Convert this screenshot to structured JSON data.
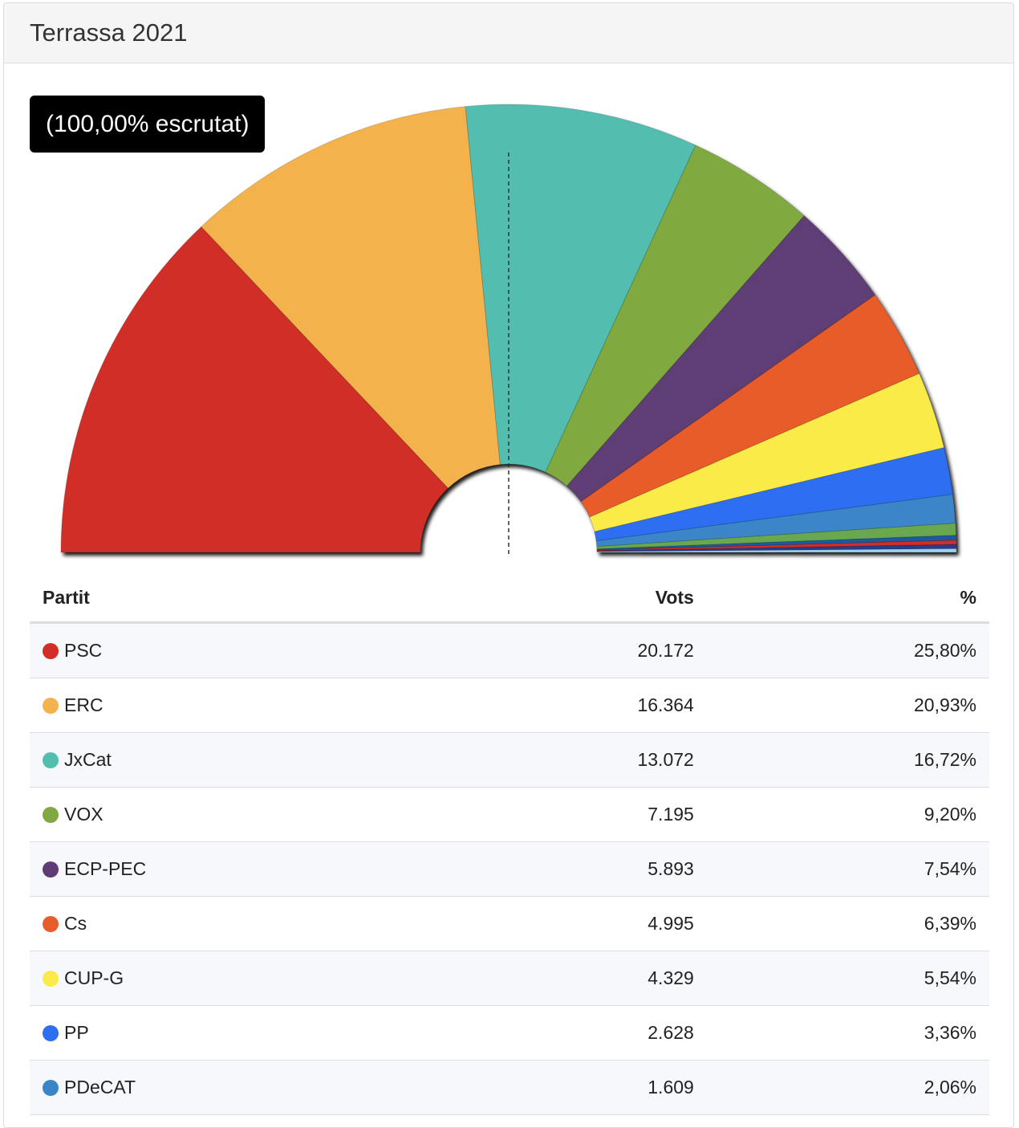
{
  "header": {
    "title": "Terrassa 2021"
  },
  "badge": {
    "text": "(100,00% escrutat)"
  },
  "table": {
    "columns": {
      "party": "Partit",
      "votes": "Vots",
      "pct": "%"
    },
    "rows": [
      {
        "party": "PSC",
        "votes": "20.172",
        "pct": "25,80%",
        "color": "#d02e27"
      },
      {
        "party": "ERC",
        "votes": "16.364",
        "pct": "20,93%",
        "color": "#f4b24e"
      },
      {
        "party": "JxCat",
        "votes": "13.072",
        "pct": "16,72%",
        "color": "#52beb0"
      },
      {
        "party": "VOX",
        "votes": "7.195",
        "pct": "9,20%",
        "color": "#80aa41"
      },
      {
        "party": "ECP-PEC",
        "votes": "5.893",
        "pct": "7,54%",
        "color": "#5e3d74"
      },
      {
        "party": "Cs",
        "votes": "4.995",
        "pct": "6,39%",
        "color": "#e85c2b"
      },
      {
        "party": "CUP-G",
        "votes": "4.329",
        "pct": "5,54%",
        "color": "#faeb4a"
      },
      {
        "party": "PP",
        "votes": "2.628",
        "pct": "3,36%",
        "color": "#2d6ef0"
      },
      {
        "party": "PDeCAT",
        "votes": "1.609",
        "pct": "2,06%",
        "color": "#3a85c8"
      }
    ]
  },
  "chart_data": {
    "type": "pie",
    "style": "half-donut",
    "scrutiny": "(100,00% escrutat)",
    "categories": [
      "PSC",
      "ERC",
      "JxCat",
      "VOX",
      "ECP-PEC",
      "Cs",
      "CUP-G",
      "PP",
      "PDeCAT"
    ],
    "values": [
      25.8,
      20.93,
      16.72,
      9.2,
      7.54,
      6.39,
      5.54,
      3.36,
      2.06
    ],
    "votes": [
      20172,
      16364,
      13072,
      7195,
      5893,
      4995,
      4329,
      2628,
      1609
    ],
    "colors": [
      "#d02e27",
      "#f4b24e",
      "#52beb0",
      "#80aa41",
      "#5e3d74",
      "#e85c2b",
      "#faeb4a",
      "#2d6ef0",
      "#3a85c8"
    ],
    "other_slices": [
      {
        "value": 0.85,
        "color": "#6aa84f"
      },
      {
        "value": 0.35,
        "color": "#1e5a9e"
      },
      {
        "value": 0.3,
        "color": "#d02e27"
      },
      {
        "value": 0.3,
        "color": "#2b3b8a"
      },
      {
        "value": 0.26,
        "color": "#9ad0f0"
      }
    ],
    "midline": "dashed"
  }
}
